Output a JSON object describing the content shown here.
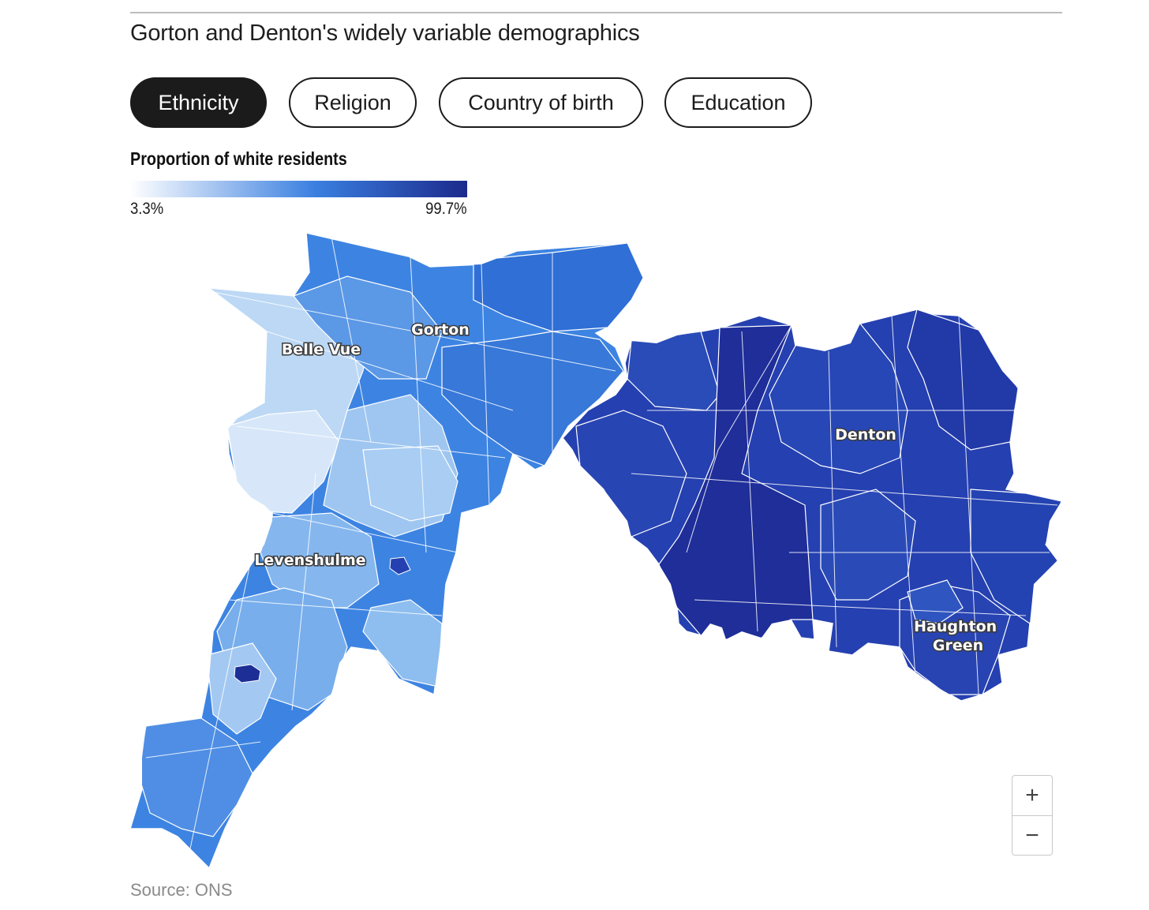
{
  "title": "Gorton and Denton's widely variable demographics",
  "tabs": [
    {
      "label": "Ethnicity",
      "active": true
    },
    {
      "label": "Religion",
      "active": false
    },
    {
      "label": "Country of birth",
      "active": false
    },
    {
      "label": "Education",
      "active": false
    }
  ],
  "legend": {
    "title": "Proportion of white residents",
    "min_label": "3.3%",
    "max_label": "99.7%",
    "min_value": 3.3,
    "max_value": 99.7,
    "color_low": "#ffffff",
    "color_mid": "#3a7fe0",
    "color_high": "#1c2a8c"
  },
  "map": {
    "places": [
      {
        "name": "Gorton"
      },
      {
        "name": "Belle Vue"
      },
      {
        "name": "Levenshulme"
      },
      {
        "name": "Denton"
      },
      {
        "name": "Haughton Green"
      }
    ],
    "zoom_in_label": "+",
    "zoom_out_label": "−"
  },
  "source": "Source: ONS"
}
